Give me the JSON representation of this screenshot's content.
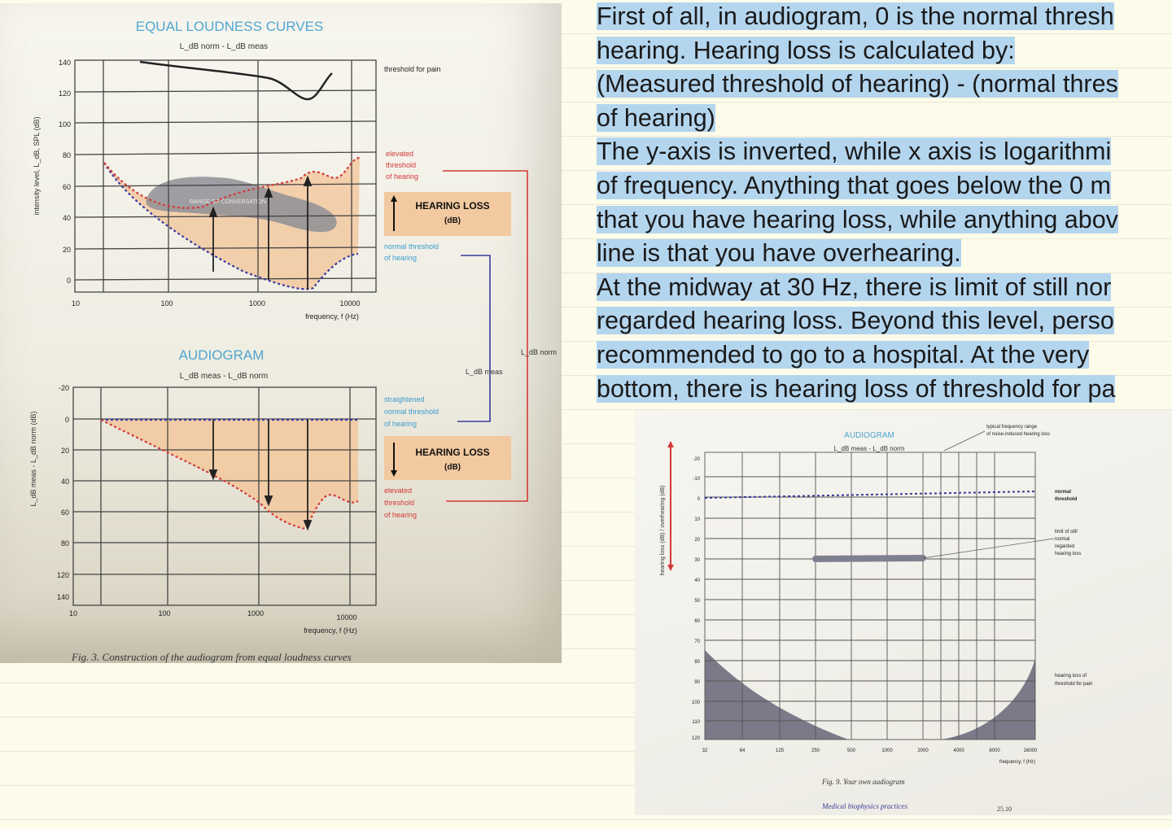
{
  "note_lines": [
    "First of all, in audiogram, 0 is the normal thresh",
    "hearing. Hearing loss is calculated by:",
    "(Measured threshold of hearing) - (normal thres",
    "of hearing)",
    "The y-axis is inverted, while x axis is logarithmi",
    "of frequency. Anything that goes below the 0 m",
    "that you have hearing loss, while anything abov",
    "line is that you have overhearing.",
    "At the midway at 30 Hz, there is limit of still nor",
    "regarded hearing loss. Beyond this level, perso",
    "recommended to go to a hospital. At the very",
    "bottom, there is hearing loss of threshold for pa"
  ],
  "highlight_color": "#b4d5ee",
  "left_photo": {
    "top_title": "EQUAL LOUDNESS CURVES",
    "top_subtitle": "L_dB norm - L_dB meas",
    "top_ylabel": "intensity level, L_dB, SPL (dB)",
    "top_yticks": [
      "140",
      "120",
      "100",
      "80",
      "60",
      "40",
      "20",
      "0"
    ],
    "xticks": [
      "10",
      "100",
      "1000",
      "10000"
    ],
    "xlabel": "frequency, f (Hz)",
    "label_pain": "threshold for pain",
    "label_elevated": [
      "elevated",
      "threshold",
      "of hearing"
    ],
    "label_normal": [
      "normal threshold",
      "of hearing"
    ],
    "hearing_loss_box": [
      "HEARING LOSS",
      "(dB)"
    ],
    "band_label": "RANGE OF CONVERSATION",
    "arrow_label_norm": "L_dB norm",
    "arrow_label_meas": "L_dB meas",
    "bottom_title": "AUDIOGRAM",
    "bottom_subtitle": "L_dB meas - L_dB norm",
    "bottom_ylabel": "L_dB meas - L_dB norm (dB)",
    "bottom_yticks": [
      "-20",
      "0",
      "20",
      "40",
      "60",
      "80",
      "120",
      "140"
    ],
    "label_straightened": [
      "straightened",
      "normal threshold",
      "of hearing"
    ],
    "caption": "Fig. 3. Construction of the audiogram from equal loudness curves"
  },
  "right_photo": {
    "title": "AUDIOGRAM",
    "subtitle": "L_dB meas - L_dB norm",
    "ylabel": "hearing loss (dB) / overhearing (dB)",
    "yticks": [
      "-20",
      "-10",
      "0",
      "10",
      "20",
      "30",
      "40",
      "50",
      "60",
      "70",
      "80",
      "90",
      "100",
      "110",
      "120"
    ],
    "xticks": [
      "32",
      "64",
      "125",
      "250",
      "500",
      "1000",
      "2000",
      "4000",
      "8000",
      "16000"
    ],
    "xlabel": "frequency, f (Hz)",
    "label_range": [
      "typical frequency range",
      "of noise-induced hearing loss"
    ],
    "label_normal": [
      "normal",
      "threshold"
    ],
    "label_limit": [
      "limit of still",
      "normal",
      "regarded",
      "hearing loss"
    ],
    "label_pain": [
      "hearing loss of",
      "threshold for pain"
    ],
    "caption": "Fig. 9. Your own audiogram",
    "footer": "Medical biophysics practices",
    "page": "25.10",
    "colors": {
      "curve": "#3a3a9a",
      "pain_fill": "#7a7a88",
      "limit_bar": "#7e8090"
    }
  },
  "colors": {
    "red_curve": "#d23a3a",
    "blue_curve": "#3a3aa0",
    "fill": "#f2c9a0",
    "title_blue": "#4fa6d0"
  }
}
